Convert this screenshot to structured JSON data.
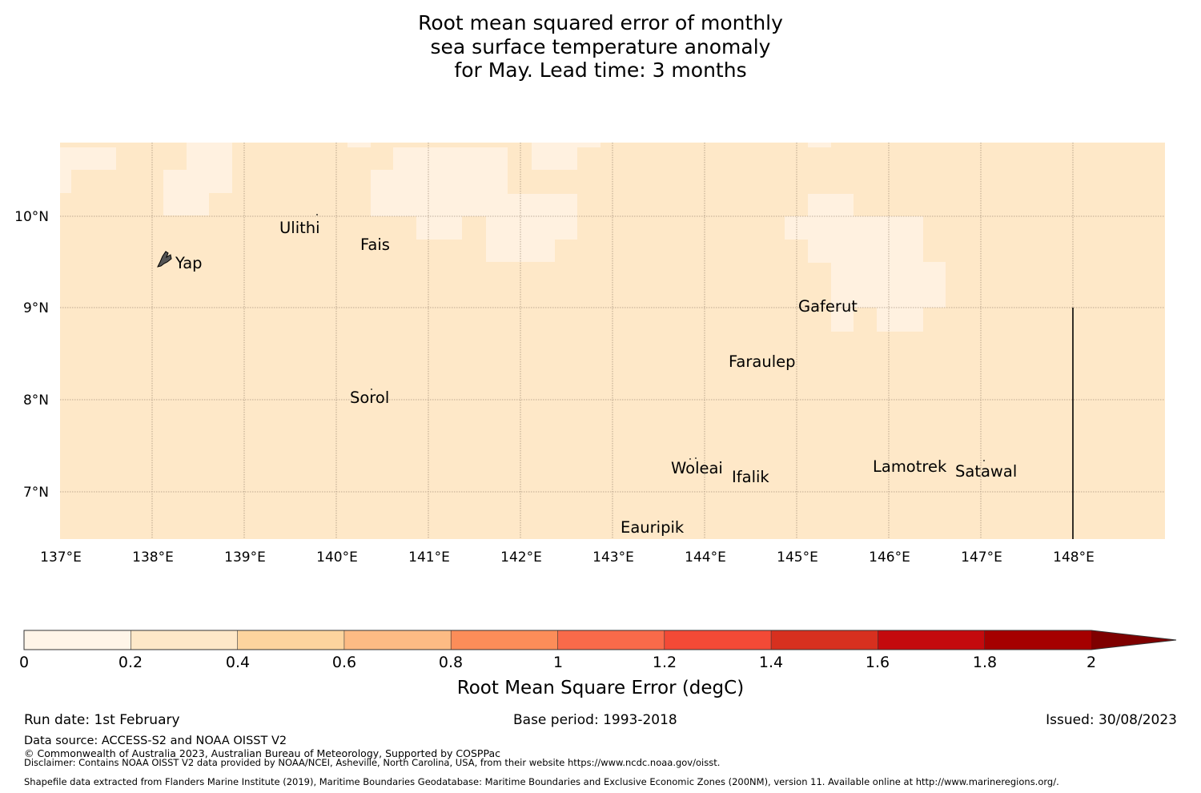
{
  "title": {
    "line1": "Root mean squared error of monthly",
    "line2": "sea surface temperature anomaly",
    "line3": "for May. Lead time: 3 months"
  },
  "map": {
    "lon_ticks": [
      "137°E",
      "138°E",
      "139°E",
      "140°E",
      "141°E",
      "142°E",
      "143°E",
      "144°E",
      "145°E",
      "146°E",
      "147°E",
      "148°E"
    ],
    "lat_ticks": [
      "10°N",
      "9°N",
      "8°N",
      "7°N"
    ],
    "colors": {
      "low": "#fff1e0",
      "base": "#fee8c8",
      "gridline": "#8c7a66",
      "boundary": "#000000"
    },
    "places": [
      "Ulithi",
      "Fais",
      "Yap",
      "Gaferut",
      "Faraulep",
      "Sorol",
      "Woleai",
      "Ifalik",
      "Lamotrek",
      "Satawal",
      "Eauripik"
    ]
  },
  "colorbar": {
    "title": "Root Mean Square Error (degC)",
    "tick_labels": [
      "0",
      "0.2",
      "0.4",
      "0.6",
      "0.8",
      "1",
      "1.2",
      "1.4",
      "1.6",
      "1.8",
      "2"
    ],
    "colors": [
      "#fff5e8",
      "#fee8c8",
      "#fdd49e",
      "#fdbb84",
      "#fc8d59",
      "#f96a4a",
      "#f34a36",
      "#d7301f",
      "#c40a0d",
      "#a50000",
      "#7f0000"
    ]
  },
  "footer": {
    "run_date": "Run date: 1st February",
    "base_period": "Base period: 1993-2018",
    "issued": "Issued: 30/08/2023",
    "data_source": "Data source: ACCESS-S2 and NOAA OISST V2",
    "copyright": "© Commonwealth of Australia 2023, Australian Bureau of Meteorology, Supported by COSPPac",
    "disclaimer": "Disclaimer: Contains NOAA OISST V2 data provided by NOAA/NCEI, Asheville, North Carolina, USA, from their website https://www.ncdc.noaa.gov/oisst.",
    "shapefile": "Shapefile data extracted from Flanders Marine Institute (2019), Maritime Boundaries Geodatabase: Maritime Boundaries and Exclusive Economic Zones (200NM), version 11. Available online at http://www.marineregions.org/."
  }
}
